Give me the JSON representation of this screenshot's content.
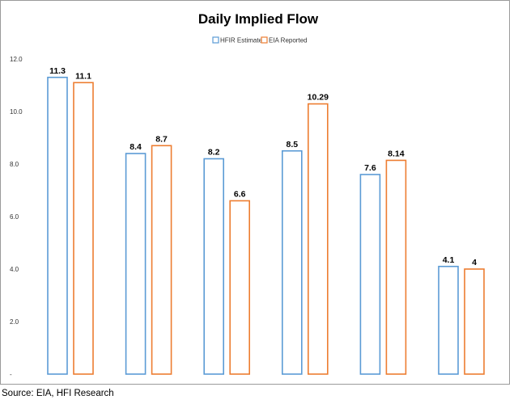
{
  "source_text": "Source: EIA, HFI Research",
  "colors": {
    "hfir": "#5b9bd5",
    "eia": "#ed7d31"
  },
  "chart_data": {
    "type": "bar",
    "title": "Daily Implied Flow",
    "xlabel": "",
    "ylabel": "",
    "categories": [
      "",
      "",
      "",
      "",
      "",
      ""
    ],
    "series": [
      {
        "name": "HFIR Estimate",
        "values": [
          11.3,
          8.4,
          8.2,
          8.5,
          7.6,
          4.1
        ],
        "labels": [
          "11.3",
          "8.4",
          "8.2",
          "8.5",
          "7.6",
          "4.1"
        ]
      },
      {
        "name": "EIA Reported",
        "values": [
          11.1,
          8.7,
          6.6,
          10.29,
          8.14,
          4
        ],
        "labels": [
          "11.1",
          "8.7",
          "6.6",
          "10.29",
          "8.14",
          "4"
        ]
      }
    ],
    "ylim": [
      0,
      12
    ],
    "yticks": [
      0,
      2,
      4,
      6,
      8,
      10,
      12
    ],
    "ytick_labels": [
      "-",
      "2.0",
      "4.0",
      "6.0",
      "8.0",
      "10.0",
      "12.0"
    ],
    "legend_position": "top-center",
    "grid": false,
    "bar_style": "outline"
  }
}
